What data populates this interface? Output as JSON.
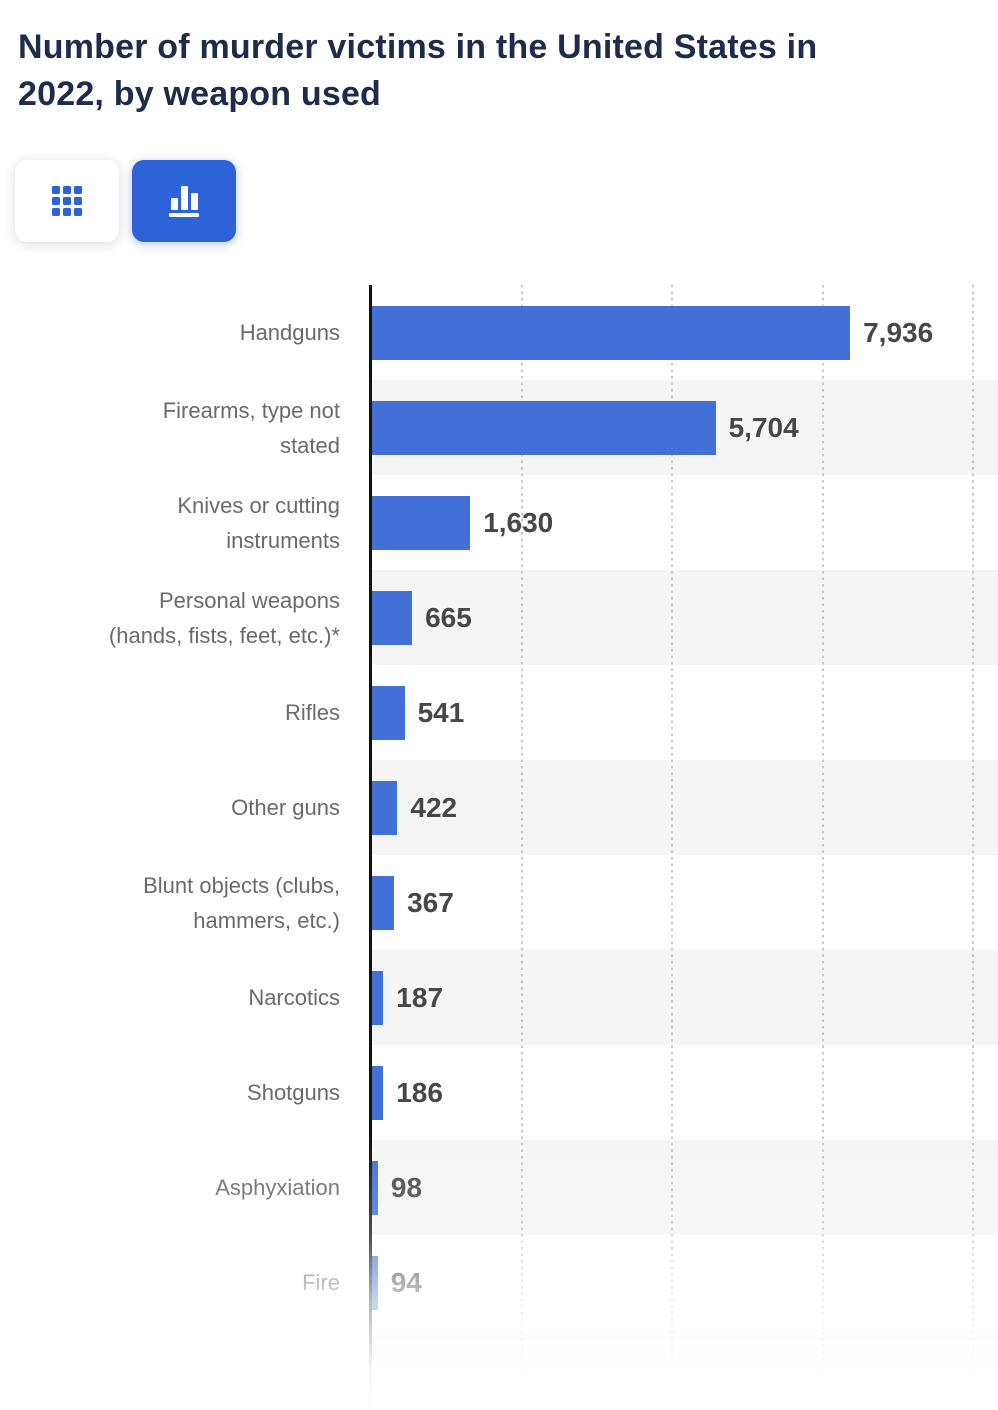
{
  "header": {
    "title_lines": [
      "Number of murder victims in the United States in",
      "2022, by weapon used"
    ]
  },
  "toolbar": {
    "table_view_button": {
      "icon": "grid-icon",
      "active": false
    },
    "chart_view_button": {
      "icon": "bar-chart-icon",
      "active": true
    }
  },
  "colors": {
    "title": "#1c2c4a",
    "bar": "#4270d6",
    "active_button": "#2d62d9",
    "row_stripe": "#f5f5f5",
    "category_label": "#6a6a6a",
    "value_label": "#474747",
    "axis": "#121212",
    "gridline": "#c8c8c8"
  },
  "chart_data": {
    "type": "bar",
    "orientation": "horizontal",
    "title": "Number of murder victims in the United States in 2022, by weapon used",
    "xlabel": "",
    "ylabel": "",
    "categories": [
      "Handguns",
      "Firearms, type not stated",
      "Knives or cutting instruments",
      "Personal weapons (hands, fists, feet, etc.)*",
      "Rifles",
      "Other guns",
      "Blunt objects (clubs, hammers, etc.)",
      "Narcotics",
      "Shotguns",
      "Asphyxiation",
      "Fire"
    ],
    "values": [
      7936,
      5704,
      1630,
      665,
      541,
      422,
      367,
      187,
      186,
      98,
      94
    ],
    "value_labels": [
      "7,936",
      "5,704",
      "1,630",
      "665",
      "541",
      "422",
      "367",
      "187",
      "186",
      "98",
      "94"
    ],
    "xlim": [
      0,
      10000
    ],
    "gridline_interval": 2500,
    "grid": "dotted-vertical",
    "legend": "none",
    "value_label_position": "right-of-bar",
    "zebra_striping": "alternate rows shaded starting with second row",
    "bottom_fade": true
  },
  "presentation": {
    "category_display": [
      "Handguns",
      "Firearms, type not\nstated",
      "Knives or cutting\ninstruments",
      "Personal weapons\n(hands, fists, feet, etc.)*",
      "Rifles",
      "Other guns",
      "Blunt objects (clubs,\nhammers, etc.)",
      "Narcotics",
      "Shotguns",
      "Asphyxiation",
      "Fire"
    ]
  }
}
